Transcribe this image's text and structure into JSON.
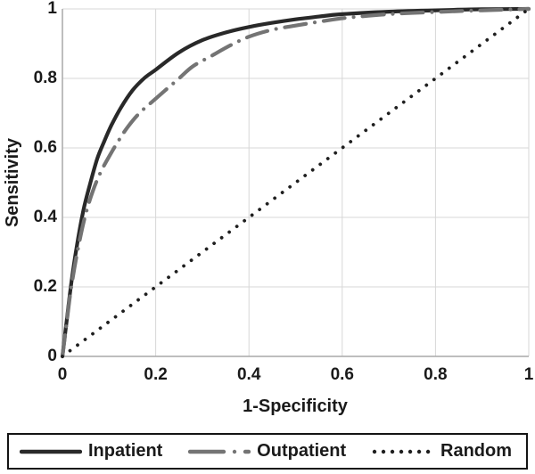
{
  "chart_data": {
    "type": "line",
    "subtype": "roc-curve",
    "title": "",
    "xlabel": "1-Specificity",
    "ylabel": "Sensitivity",
    "xlim": [
      0,
      1
    ],
    "ylim": [
      0,
      1
    ],
    "grid": true,
    "legend_position": "bottom",
    "x_ticks": [
      0,
      0.2,
      0.4,
      0.6,
      0.8,
      1
    ],
    "x_tick_labels": [
      "0",
      "0.2",
      "0.4",
      "0.6",
      "0.8",
      "1"
    ],
    "y_ticks": [
      0,
      0.2,
      0.4,
      0.6,
      0.8,
      1
    ],
    "y_tick_labels": [
      "0",
      "0.2",
      "0.4",
      "0.6",
      "0.8",
      "1"
    ],
    "colors": {
      "background": "#ffffff",
      "grid": "#d7d7d7",
      "axis": "#a9a9a9",
      "text": "#1a1a1a",
      "legend_border": "#141414"
    },
    "series": [
      {
        "name": "Inpatient",
        "style": "solid",
        "color": "#292929",
        "width": 4.2,
        "x": [
          0,
          0.008,
          0.018,
          0.03,
          0.045,
          0.06,
          0.075,
          0.09,
          0.105,
          0.125,
          0.15,
          0.175,
          0.2,
          0.25,
          0.3,
          0.35,
          0.4,
          0.45,
          0.5,
          0.55,
          0.6,
          0.7,
          0.8,
          0.9,
          1
        ],
        "y": [
          0,
          0.09,
          0.2,
          0.31,
          0.42,
          0.5,
          0.57,
          0.62,
          0.665,
          0.715,
          0.765,
          0.8,
          0.825,
          0.875,
          0.91,
          0.932,
          0.948,
          0.96,
          0.97,
          0.978,
          0.985,
          0.992,
          0.996,
          0.999,
          1
        ]
      },
      {
        "name": "Outpatient",
        "style": "dash-dot",
        "color": "#747474",
        "width": 4.2,
        "x": [
          0,
          0.008,
          0.018,
          0.032,
          0.048,
          0.065,
          0.082,
          0.1,
          0.12,
          0.14,
          0.165,
          0.19,
          0.22,
          0.25,
          0.28,
          0.32,
          0.36,
          0.4,
          0.45,
          0.5,
          0.55,
          0.6,
          0.7,
          0.8,
          0.9,
          1
        ],
        "y": [
          0,
          0.085,
          0.19,
          0.3,
          0.4,
          0.475,
          0.53,
          0.575,
          0.62,
          0.66,
          0.7,
          0.73,
          0.765,
          0.8,
          0.835,
          0.865,
          0.895,
          0.92,
          0.94,
          0.952,
          0.963,
          0.973,
          0.985,
          0.991,
          0.996,
          1
        ]
      },
      {
        "name": "Random",
        "style": "dotted",
        "color": "#1f1f1f",
        "width": 3.8,
        "x": [
          0,
          1
        ],
        "y": [
          0,
          1
        ]
      }
    ]
  }
}
